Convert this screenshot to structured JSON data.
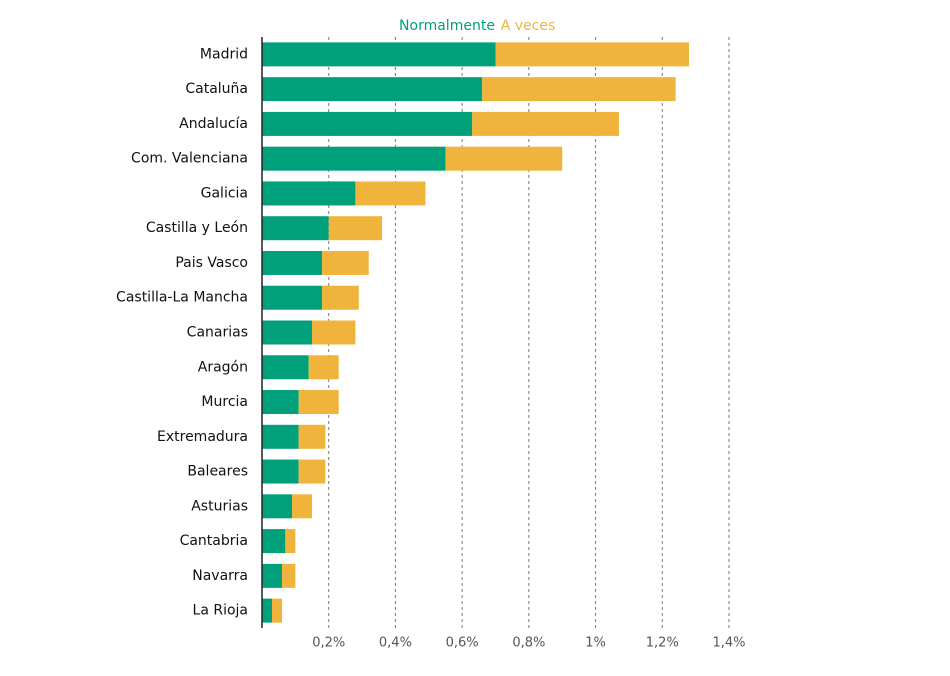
{
  "chart_data": {
    "type": "stacked-barh",
    "categories": [
      "Madrid",
      "Cataluña",
      "Andalucía",
      "Com. Valenciana",
      "Galicia",
      "Castilla y León",
      "Pais Vasco",
      "Castilla-La Mancha",
      "Canarias",
      "Aragón",
      "Murcia",
      "Extremadura",
      "Baleares",
      "Asturias",
      "Cantabria",
      "Navarra",
      "La Rioja"
    ],
    "series": [
      {
        "name": "Normalmente",
        "color": "#00a07a",
        "values": [
          0.7,
          0.66,
          0.63,
          0.55,
          0.28,
          0.2,
          0.18,
          0.18,
          0.15,
          0.14,
          0.11,
          0.11,
          0.11,
          0.09,
          0.07,
          0.06,
          0.03
        ]
      },
      {
        "name": "A veces",
        "color": "#f0b43c",
        "values": [
          0.58,
          0.58,
          0.44,
          0.35,
          0.21,
          0.16,
          0.14,
          0.11,
          0.13,
          0.09,
          0.12,
          0.08,
          0.08,
          0.06,
          0.03,
          0.04,
          0.03
        ]
      }
    ],
    "xlim": [
      0,
      1.4
    ],
    "xticks": [
      {
        "value": 0.2,
        "label": "0,2%"
      },
      {
        "value": 0.4,
        "label": "0,4%"
      },
      {
        "value": 0.6,
        "label": "0,6%"
      },
      {
        "value": 0.8,
        "label": "0,8%"
      },
      {
        "value": 1,
        "label": "1%"
      },
      {
        "value": 1.2,
        "label": "1,2%"
      },
      {
        "value": 1.4,
        "label": "1,4%"
      }
    ],
    "grid": true,
    "legend": "top"
  }
}
